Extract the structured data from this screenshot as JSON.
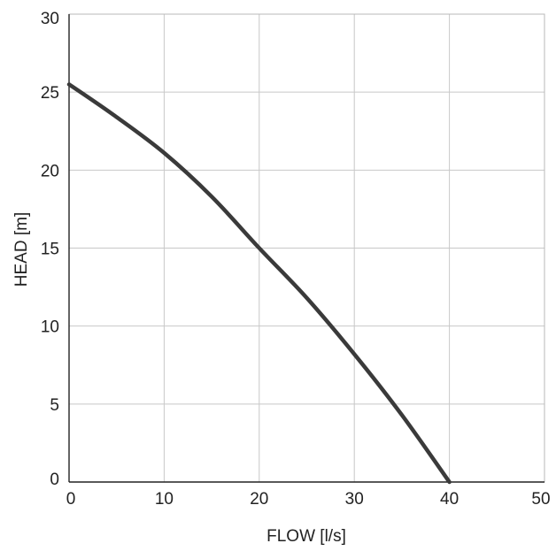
{
  "chart_data": {
    "type": "line",
    "title": "",
    "xlabel": "FLOW [l/s]",
    "ylabel": "HEAD [m]",
    "xlim": [
      0,
      50
    ],
    "ylim": [
      0,
      30
    ],
    "xticks": [
      "0",
      "10",
      "20",
      "30",
      "40",
      "50"
    ],
    "yticks": [
      "0",
      "5",
      "10",
      "15",
      "20",
      "25",
      "30"
    ],
    "grid": true,
    "series": [
      {
        "color": "#3a3a3a",
        "x": [
          0,
          5,
          10,
          15,
          20,
          25,
          30,
          35,
          40
        ],
        "y": [
          25.5,
          23.4,
          21.1,
          18.3,
          15.0,
          11.8,
          8.2,
          4.3,
          0
        ]
      }
    ]
  }
}
